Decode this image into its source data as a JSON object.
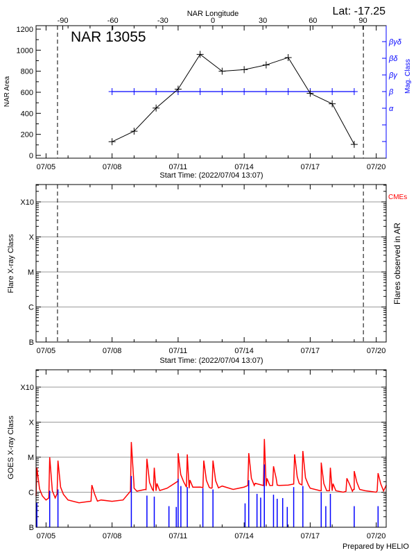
{
  "chart_data": [
    {
      "type": "line",
      "title": "NAR 13055",
      "latitude_label": "Lat: -17.25",
      "top_axis_label": "NAR Longitude",
      "top_ticks": [
        "-90",
        "-60",
        "-30",
        "0",
        "30",
        "60",
        "90"
      ],
      "xlabel": "Start Time: (2022/07/04 13:07)",
      "x_ticks": [
        "07/05",
        "07/08",
        "07/11",
        "07/14",
        "07/17",
        "07/20"
      ],
      "ylabel": "NAR Area",
      "y_ticks": [
        "0",
        "200",
        "400",
        "600",
        "800",
        "1000",
        "1200"
      ],
      "ylim": [
        0,
        1200
      ],
      "y2label": "Mag. Class",
      "y2_ticks": [
        "α",
        "β",
        "βγ",
        "βδ",
        "βγδ"
      ],
      "limb_times": [
        "07/05 12:30",
        "07/19 10:00"
      ],
      "series": [
        {
          "color": "#000000",
          "x": [
            "07/08 00:00",
            "07/09 00:00",
            "07/10 00:00",
            "07/11 00:00",
            "07/12 00:00",
            "07/13 00:00",
            "07/14 00:00",
            "07/15 00:00",
            "07/16 00:00",
            "07/17 00:00",
            "07/18 00:00",
            "07/19 00:00"
          ],
          "values": [
            130,
            230,
            450,
            630,
            960,
            800,
            815,
            860,
            930,
            590,
            490,
            105
          ]
        },
        {
          "color": "#0000ff",
          "x": [
            "07/08 00:00",
            "07/09 00:00",
            "07/10 00:00",
            "07/11 00:00",
            "07/12 00:00",
            "07/13 00:00",
            "07/14 00:00",
            "07/15 00:00",
            "07/16 00:00",
            "07/17 00:00",
            "07/18 00:00",
            "07/19 00:00"
          ],
          "classes": [
            "β",
            "β",
            "β",
            "β",
            "β",
            "β",
            "β",
            "β",
            "β",
            "β",
            "β",
            "β"
          ]
        }
      ]
    },
    {
      "type": "scatter",
      "xlabel": "Start Time: (2022/07/04 13:07)",
      "x_ticks": [
        "07/05",
        "07/08",
        "07/11",
        "07/14",
        "07/17",
        "07/20"
      ],
      "ylabel": "Flare X-ray Class",
      "y_ticks": [
        "B",
        "C",
        "M",
        "X",
        "X10"
      ],
      "y2label": "Flares observed in AR",
      "cme_label": "CMEs",
      "cme_color": "#ff0000",
      "limb_times": [
        "07/05 12:30",
        "07/19 10:00"
      ],
      "grid": true,
      "flares": []
    },
    {
      "type": "line",
      "ylabel": "GOES X-ray Class",
      "x_ticks": [
        "07/05",
        "07/08",
        "07/11",
        "07/14",
        "07/17",
        "07/20"
      ],
      "y_ticks": [
        "B",
        "C",
        "M",
        "X",
        "X10"
      ],
      "y_scale": "log",
      "grid": true,
      "footer": "Prepared by HELIO",
      "series": [
        {
          "color": "#ff0000",
          "baseline": [
            [
              "07/04 13:07",
              8e-07
            ],
            [
              "07/05 00:00",
              6e-07
            ],
            [
              "07/05 12:00",
              9e-07
            ],
            [
              "07/06 00:00",
              6e-07
            ],
            [
              "07/06 12:00",
              5e-07
            ],
            [
              "07/07 00:00",
              5.5e-07
            ],
            [
              "07/07 12:00",
              6e-07
            ],
            [
              "07/08 00:00",
              5.5e-07
            ],
            [
              "07/08 12:00",
              6e-07
            ],
            [
              "07/09 00:00",
              1.3e-06
            ],
            [
              "07/09 12:00",
              1.2e-06
            ],
            [
              "07/10 00:00",
              1.1e-06
            ],
            [
              "07/10 12:00",
              1.3e-06
            ],
            [
              "07/11 00:00",
              2e-06
            ],
            [
              "07/11 12:00",
              1.3e-06
            ],
            [
              "07/12 00:00",
              1.4e-06
            ],
            [
              "07/12 12:00",
              1.3e-06
            ],
            [
              "07/13 00:00",
              1.5e-06
            ],
            [
              "07/13 12:00",
              1.2e-06
            ],
            [
              "07/14 00:00",
              1.4e-06
            ],
            [
              "07/14 12:00",
              1.8e-06
            ],
            [
              "07/15 00:00",
              1.5e-06
            ],
            [
              "07/15 12:00",
              1.6e-06
            ],
            [
              "07/16 00:00",
              1.6e-06
            ],
            [
              "07/16 12:00",
              1.8e-06
            ],
            [
              "07/17 00:00",
              1.3e-06
            ],
            [
              "07/17 12:00",
              1.1e-06
            ],
            [
              "07/18 00:00",
              1.1e-06
            ],
            [
              "07/18 12:00",
              1e-06
            ],
            [
              "07/19 00:00",
              1.2e-06
            ],
            [
              "07/19 12:00",
              1.1e-06
            ],
            [
              "07/20 00:00",
              1e-06
            ],
            [
              "07/20 11:00",
              1.6e-06
            ]
          ],
          "peaks": [
            [
              "07/04 14:00",
              5e-06
            ],
            [
              "07/05 04:00",
              1e-05
            ],
            [
              "07/05 13:00",
              8e-06
            ],
            [
              "07/07 02:00",
              1.6e-06
            ],
            [
              "07/08 21:00",
              2.7e-05
            ],
            [
              "07/09 14:00",
              9e-06
            ],
            [
              "07/09 22:00",
              5e-06
            ],
            [
              "07/11 00:00",
              1.3e-05
            ],
            [
              "07/11 10:00",
              1.2e-05
            ],
            [
              "07/12 04:00",
              8e-06
            ],
            [
              "07/12 14:00",
              8e-06
            ],
            [
              "07/14 05:00",
              1.3e-05
            ],
            [
              "07/14 22:00",
              3.3e-05
            ],
            [
              "07/15 08:00",
              5.5e-06
            ],
            [
              "07/16 07:00",
              1.2e-05
            ],
            [
              "07/16 16:00",
              1.5e-05
            ],
            [
              "07/17 12:00",
              7e-06
            ],
            [
              "07/17 22:00",
              5e-06
            ],
            [
              "07/18 16:00",
              2.5e-06
            ],
            [
              "07/19 00:00",
              4e-06
            ],
            [
              "07/20 02:00",
              3.5e-06
            ]
          ]
        },
        {
          "color": "#0000ff",
          "peaks": [
            [
              "07/04 14:00",
              5e-07
            ],
            [
              "07/05 04:00",
              1.1e-06
            ],
            [
              "07/05 13:00",
              1.2e-06
            ],
            [
              "07/08 21:00",
              2.9e-06
            ],
            [
              "07/09 14:00",
              8e-07
            ],
            [
              "07/09 22:00",
              7.5e-07
            ],
            [
              "07/10 14:00",
              4e-07
            ],
            [
              "07/10 22:00",
              3.8e-07
            ],
            [
              "07/11 00:00",
              2.4e-06
            ],
            [
              "07/11 03:00",
              1.5e-06
            ],
            [
              "07/11 10:00",
              1.4e-06
            ],
            [
              "07/12 03:00",
              1.3e-06
            ],
            [
              "07/12 14:00",
              1.2e-06
            ],
            [
              "07/14 01:00",
              4.8e-07
            ],
            [
              "07/14 05:00",
              2.2e-06
            ],
            [
              "07/14 14:00",
              9e-07
            ],
            [
              "07/14 18:00",
              7e-07
            ],
            [
              "07/14 22:00",
              6.2e-06
            ],
            [
              "07/15 08:00",
              8.5e-07
            ],
            [
              "07/15 12:00",
              6.5e-07
            ],
            [
              "07/15 18:00",
              6.8e-07
            ],
            [
              "07/15 23:00",
              3.8e-07
            ],
            [
              "07/16 06:00",
              1.4e-06
            ],
            [
              "07/16 16:00",
              1.5e-06
            ],
            [
              "07/17 12:00",
              1e-06
            ],
            [
              "07/17 17:00",
              4e-07
            ],
            [
              "07/17 22:00",
              9e-07
            ],
            [
              "07/19 00:00",
              4e-07
            ],
            [
              "07/20 02:00",
              4e-07
            ]
          ]
        }
      ]
    }
  ]
}
